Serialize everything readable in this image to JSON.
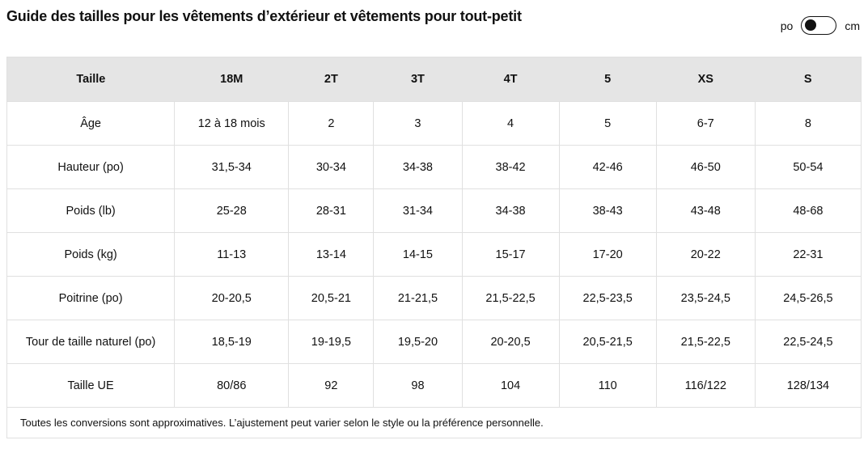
{
  "title": "Guide des tailles pour les vêtements d’extérieur et vêtements pour tout-petit",
  "unit_toggle": {
    "left_label": "po",
    "right_label": "cm",
    "selected": "po"
  },
  "table": {
    "header": [
      "Taille",
      "18M",
      "2T",
      "3T",
      "4T",
      "5",
      "XS",
      "S"
    ],
    "rows": [
      [
        "Âge",
        "12 à 18 mois",
        "2",
        "3",
        "4",
        "5",
        "6-7",
        "8"
      ],
      [
        "Hauteur (po)",
        "31,5-34",
        "30-34",
        "34-38",
        "38-42",
        "42-46",
        "46-50",
        "50-54"
      ],
      [
        "Poids (lb)",
        "25-28",
        "28-31",
        "31-34",
        "34-38",
        "38-43",
        "43-48",
        "48-68"
      ],
      [
        "Poids (kg)",
        "11-13",
        "13-14",
        "14-15",
        "15-17",
        "17-20",
        "20-22",
        "22-31"
      ],
      [
        "Poitrine (po)",
        "20-20,5",
        "20,5-21",
        "21-21,5",
        "21,5-22,5",
        "22,5-23,5",
        "23,5-24,5",
        "24,5-26,5"
      ],
      [
        "Tour de taille naturel (po)",
        "18,5-19",
        "19-19,5",
        "19,5-20",
        "20-20,5",
        "20,5-21,5",
        "21,5-22,5",
        "22,5-24,5"
      ],
      [
        "Taille UE",
        "80/86",
        "92",
        "98",
        "104",
        "110",
        "116/122",
        "128/134"
      ]
    ]
  },
  "footnote": "Toutes les conversions sont approximatives. L’ajustement peut varier selon le style ou la préférence personnelle.",
  "colors": {
    "header_bg": "#e5e5e5",
    "border": "#e0e0e0",
    "text": "#111111",
    "toggle_knob": "#111111"
  }
}
